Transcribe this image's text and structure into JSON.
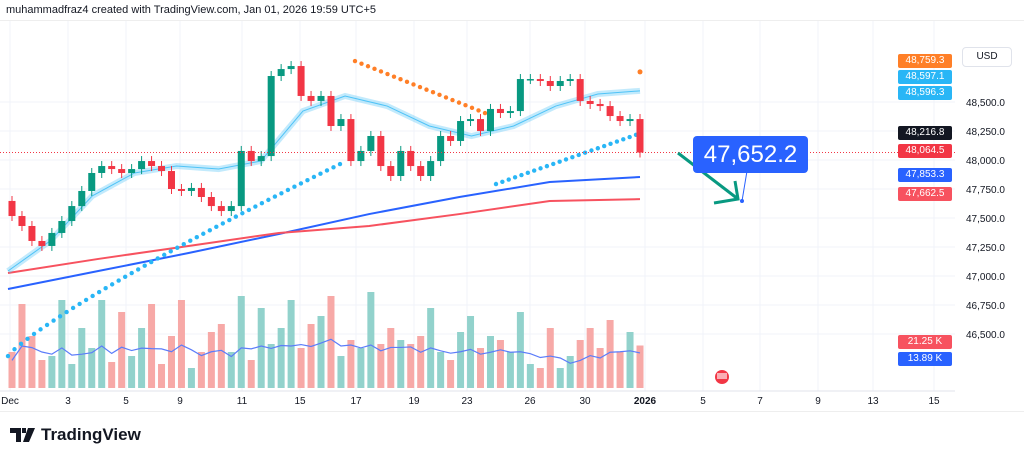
{
  "header": {
    "text": "muhammadfraz4 created with TradingView.com, Jan 01, 2026 19:59 UTC+5"
  },
  "currency": "USD",
  "callout": {
    "value": "47,652.2",
    "color": "#2962ff"
  },
  "branding": {
    "logo_text": "TradingView"
  },
  "colors": {
    "up": "#089981",
    "down": "#f23645",
    "ma_blue": "#2962ff",
    "ma_red": "#f7525f",
    "dots_cyan": "#29b6f6",
    "dots_orange": "#ff7f27",
    "ribbon": "#4fc3f7",
    "arrow": "#089981"
  },
  "chart_data": {
    "type": "candlestick",
    "title": "",
    "y_ticks": [
      "48,500.0",
      "48,250.0",
      "48,000.0",
      "47,750.0",
      "47,500.0",
      "47,250.0",
      "47,000.0",
      "46,750.0",
      "46,500.0"
    ],
    "x_ticks": [
      "Dec",
      "3",
      "5",
      "9",
      "11",
      "15",
      "17",
      "19",
      "23",
      "26",
      "30",
      "2026",
      "5",
      "7",
      "9",
      "13",
      "15"
    ],
    "ylim": [
      46250,
      49000
    ],
    "first_open": 47647,
    "closes": [
      47517,
      47431,
      47302,
      47259,
      47371,
      47474,
      47603,
      47733,
      47888,
      47948,
      47922,
      47888,
      47922,
      47991,
      47948,
      47905,
      47750,
      47733,
      47759,
      47681,
      47603,
      47560,
      47603,
      48078,
      47991,
      48034,
      48724,
      48784,
      48810,
      48552,
      48509,
      48552,
      48293,
      48353,
      47991,
      48078,
      48207,
      47948,
      47862,
      48078,
      47948,
      47862,
      47991,
      48207,
      48164,
      48336,
      48353,
      48250,
      48440,
      48405,
      48422,
      48698,
      48698,
      48681,
      48638,
      48681,
      48698,
      48509,
      48483,
      48465,
      48379,
      48336,
      48353,
      48064.5
    ],
    "volumes_k": [
      18,
      42,
      26,
      14,
      16,
      44,
      12,
      30,
      20,
      44,
      13,
      38,
      16,
      30,
      42,
      12,
      26,
      44,
      10,
      18,
      28,
      32,
      18,
      46,
      14,
      40,
      22,
      30,
      44,
      20,
      32,
      36,
      46,
      16,
      24,
      20,
      48,
      22,
      30,
      24,
      22,
      26,
      40,
      18,
      14,
      28,
      36,
      20,
      26,
      24,
      18,
      38,
      12,
      10,
      30,
      10,
      16,
      24,
      30,
      20,
      34,
      18,
      28,
      21.25
    ],
    "volume_ma_k": 13.89,
    "series": [
      {
        "kind": "ma_blue",
        "points": [
          46888,
          47043,
          47198,
          47362,
          47534,
          47681,
          47810,
          47853.3
        ]
      },
      {
        "kind": "ma_red",
        "points": [
          47026,
          47147,
          47259,
          47371,
          47431,
          47534,
          47647,
          47662.5
        ]
      },
      {
        "kind": "ribbon",
        "points": [
          47043,
          47302,
          47690,
          47888,
          47948,
          47922,
          47991,
          48422,
          48552,
          48465,
          48293,
          48207,
          48293,
          48465,
          48569,
          48596.3
        ]
      },
      {
        "kind": "dots_cyan_1",
        "from": 46310,
        "to": 47965
      },
      {
        "kind": "dots_cyan_2",
        "from": 47793,
        "to": 48216.8
      },
      {
        "kind": "dots_orange",
        "from": 48853,
        "to": 48405,
        "last": 48759.3
      }
    ],
    "price_tags": [
      {
        "value": "48,759.3",
        "color": "#ff7f27"
      },
      {
        "value": "48,597.1",
        "color": "#29b6f6"
      },
      {
        "value": "48,596.3",
        "color": "#29b6f6"
      },
      {
        "value": "48,216.8",
        "color": "#131722"
      },
      {
        "value": "48,064.5",
        "color": "#f23645"
      },
      {
        "value": "47,853.3",
        "color": "#2962ff"
      },
      {
        "value": "47,662.5",
        "color": "#f7525f"
      },
      {
        "value": "21.25 K",
        "color": "#f7525f"
      },
      {
        "value": "13.89 K",
        "color": "#2962ff"
      }
    ]
  }
}
